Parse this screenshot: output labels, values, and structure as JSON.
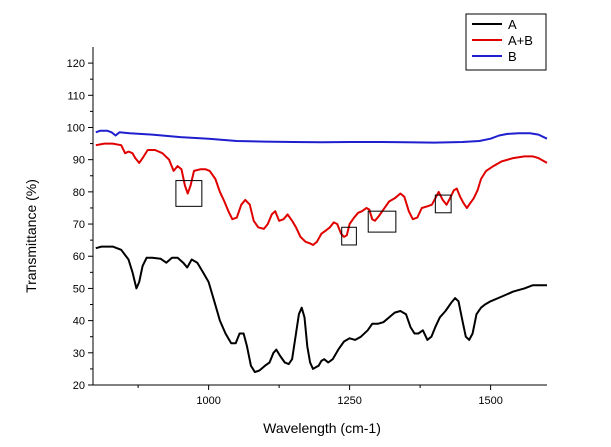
{
  "chart_data": {
    "type": "line",
    "title": "",
    "xlabel": "Wavelength (cm-1)",
    "ylabel": "Transmittance (%)",
    "xlim": [
      795,
      1600
    ],
    "ylim": [
      20,
      125
    ],
    "xticks": [
      1000,
      1250,
      1500
    ],
    "yticks": [
      20,
      30,
      40,
      50,
      60,
      70,
      80,
      90,
      100,
      110,
      120
    ],
    "legend_position": "top-right",
    "series": [
      {
        "name": "A",
        "color": "#000000",
        "points": [
          [
            800,
            62.5
          ],
          [
            810,
            63
          ],
          [
            830,
            63
          ],
          [
            845,
            62
          ],
          [
            858,
            59
          ],
          [
            865,
            55
          ],
          [
            872,
            50
          ],
          [
            877,
            52
          ],
          [
            883,
            57
          ],
          [
            890,
            59.5
          ],
          [
            900,
            59.5
          ],
          [
            915,
            59.2
          ],
          [
            925,
            58
          ],
          [
            935,
            59.5
          ],
          [
            945,
            59.5
          ],
          [
            955,
            58
          ],
          [
            962,
            56.5
          ],
          [
            970,
            59
          ],
          [
            980,
            58
          ],
          [
            990,
            55
          ],
          [
            1000,
            52
          ],
          [
            1010,
            46
          ],
          [
            1020,
            40
          ],
          [
            1030,
            36
          ],
          [
            1040,
            33
          ],
          [
            1048,
            33
          ],
          [
            1055,
            36
          ],
          [
            1062,
            36
          ],
          [
            1068,
            32
          ],
          [
            1075,
            26
          ],
          [
            1082,
            24
          ],
          [
            1090,
            24.5
          ],
          [
            1100,
            26
          ],
          [
            1108,
            27
          ],
          [
            1115,
            30
          ],
          [
            1120,
            31
          ],
          [
            1127,
            29
          ],
          [
            1135,
            27
          ],
          [
            1142,
            26.5
          ],
          [
            1148,
            28
          ],
          [
            1155,
            36
          ],
          [
            1160,
            42
          ],
          [
            1165,
            44
          ],
          [
            1170,
            41
          ],
          [
            1175,
            32
          ],
          [
            1180,
            27
          ],
          [
            1185,
            25
          ],
          [
            1190,
            25.5
          ],
          [
            1195,
            26
          ],
          [
            1200,
            27.5
          ],
          [
            1205,
            28
          ],
          [
            1212,
            27
          ],
          [
            1220,
            28
          ],
          [
            1230,
            31
          ],
          [
            1240,
            33.5
          ],
          [
            1250,
            34.5
          ],
          [
            1260,
            34
          ],
          [
            1270,
            35
          ],
          [
            1282,
            37
          ],
          [
            1290,
            39
          ],
          [
            1300,
            39
          ],
          [
            1310,
            39.5
          ],
          [
            1320,
            41
          ],
          [
            1330,
            42.5
          ],
          [
            1340,
            43
          ],
          [
            1350,
            42
          ],
          [
            1358,
            38
          ],
          [
            1365,
            36
          ],
          [
            1372,
            36
          ],
          [
            1380,
            37
          ],
          [
            1388,
            34
          ],
          [
            1395,
            35
          ],
          [
            1402,
            38
          ],
          [
            1410,
            41
          ],
          [
            1420,
            43
          ],
          [
            1430,
            45.5
          ],
          [
            1437,
            47
          ],
          [
            1443,
            46
          ],
          [
            1450,
            40
          ],
          [
            1456,
            35
          ],
          [
            1462,
            34
          ],
          [
            1468,
            36
          ],
          [
            1475,
            42
          ],
          [
            1483,
            44
          ],
          [
            1490,
            45
          ],
          [
            1500,
            46
          ],
          [
            1520,
            47.5
          ],
          [
            1540,
            49
          ],
          [
            1560,
            50
          ],
          [
            1575,
            51
          ],
          [
            1585,
            51
          ],
          [
            1600,
            51
          ]
        ]
      },
      {
        "name": "A+B",
        "color": "#e00000",
        "points": [
          [
            800,
            94.5
          ],
          [
            815,
            95
          ],
          [
            830,
            95
          ],
          [
            845,
            94.5
          ],
          [
            852,
            92
          ],
          [
            858,
            92.5
          ],
          [
            865,
            92
          ],
          [
            870,
            90.5
          ],
          [
            877,
            89
          ],
          [
            883,
            90.5
          ],
          [
            892,
            93
          ],
          [
            905,
            93
          ],
          [
            918,
            92
          ],
          [
            930,
            90
          ],
          [
            938,
            86.5
          ],
          [
            945,
            88
          ],
          [
            952,
            87
          ],
          [
            958,
            82
          ],
          [
            963,
            79.5
          ],
          [
            968,
            82
          ],
          [
            974,
            86.5
          ],
          [
            985,
            87
          ],
          [
            995,
            87
          ],
          [
            1002,
            86.5
          ],
          [
            1012,
            84
          ],
          [
            1020,
            80
          ],
          [
            1028,
            77
          ],
          [
            1035,
            74
          ],
          [
            1042,
            71.5
          ],
          [
            1050,
            72
          ],
          [
            1058,
            76
          ],
          [
            1065,
            77.5
          ],
          [
            1073,
            76
          ],
          [
            1080,
            71
          ],
          [
            1088,
            69
          ],
          [
            1098,
            68.5
          ],
          [
            1105,
            70
          ],
          [
            1112,
            73
          ],
          [
            1118,
            74
          ],
          [
            1125,
            71
          ],
          [
            1133,
            71.5
          ],
          [
            1140,
            73
          ],
          [
            1148,
            71
          ],
          [
            1155,
            69
          ],
          [
            1163,
            66
          ],
          [
            1172,
            64.5
          ],
          [
            1180,
            64
          ],
          [
            1185,
            63.5
          ],
          [
            1192,
            64.5
          ],
          [
            1200,
            67
          ],
          [
            1208,
            68
          ],
          [
            1215,
            69
          ],
          [
            1222,
            70.5
          ],
          [
            1228,
            70
          ],
          [
            1235,
            67
          ],
          [
            1240,
            66
          ],
          [
            1245,
            66.5
          ],
          [
            1250,
            70
          ],
          [
            1258,
            72
          ],
          [
            1265,
            73.5
          ],
          [
            1272,
            74
          ],
          [
            1280,
            75
          ],
          [
            1285,
            74.5
          ],
          [
            1290,
            71.5
          ],
          [
            1295,
            71
          ],
          [
            1302,
            72.5
          ],
          [
            1310,
            74.5
          ],
          [
            1320,
            77
          ],
          [
            1330,
            78
          ],
          [
            1340,
            79.5
          ],
          [
            1347,
            78.5
          ],
          [
            1355,
            74
          ],
          [
            1362,
            71.5
          ],
          [
            1370,
            72
          ],
          [
            1378,
            75
          ],
          [
            1388,
            75.5
          ],
          [
            1396,
            76
          ],
          [
            1402,
            78
          ],
          [
            1408,
            80
          ],
          [
            1415,
            77.5
          ],
          [
            1422,
            76
          ],
          [
            1428,
            78
          ],
          [
            1435,
            80.5
          ],
          [
            1440,
            81
          ],
          [
            1446,
            78.5
          ],
          [
            1452,
            76.5
          ],
          [
            1458,
            75
          ],
          [
            1464,
            76.5
          ],
          [
            1470,
            78
          ],
          [
            1477,
            80.5
          ],
          [
            1483,
            84
          ],
          [
            1492,
            86.5
          ],
          [
            1505,
            88
          ],
          [
            1520,
            89.5
          ],
          [
            1540,
            90.5
          ],
          [
            1560,
            91
          ],
          [
            1575,
            91
          ],
          [
            1585,
            90.5
          ],
          [
            1600,
            89
          ]
        ]
      },
      {
        "name": "B",
        "color": "#1f1fcf",
        "points": [
          [
            800,
            98.5
          ],
          [
            808,
            99
          ],
          [
            820,
            99
          ],
          [
            828,
            98.5
          ],
          [
            835,
            97.5
          ],
          [
            842,
            98.5
          ],
          [
            860,
            98.2
          ],
          [
            900,
            97.8
          ],
          [
            950,
            97
          ],
          [
            1000,
            96.5
          ],
          [
            1050,
            95.8
          ],
          [
            1100,
            95.6
          ],
          [
            1150,
            95.5
          ],
          [
            1200,
            95.4
          ],
          [
            1250,
            95.5
          ],
          [
            1300,
            95.5
          ],
          [
            1350,
            95.4
          ],
          [
            1400,
            95.3
          ],
          [
            1450,
            95.5
          ],
          [
            1480,
            95.8
          ],
          [
            1500,
            96.5
          ],
          [
            1515,
            97.5
          ],
          [
            1530,
            98
          ],
          [
            1550,
            98.2
          ],
          [
            1570,
            98.2
          ],
          [
            1585,
            97.8
          ],
          [
            1600,
            96.5
          ]
        ]
      }
    ],
    "annotation_boxes": [
      {
        "label": "band-box",
        "x": [
          942,
          988
        ],
        "y": [
          75.5,
          83.5
        ]
      },
      {
        "label": "band-box",
        "x": [
          1236,
          1262
        ],
        "y": [
          63.5,
          69
        ]
      },
      {
        "label": "band-box",
        "x": [
          1283,
          1332
        ],
        "y": [
          67.5,
          74
        ]
      },
      {
        "label": "band-box",
        "x": [
          1402,
          1430
        ],
        "y": [
          73.5,
          79
        ]
      }
    ]
  }
}
